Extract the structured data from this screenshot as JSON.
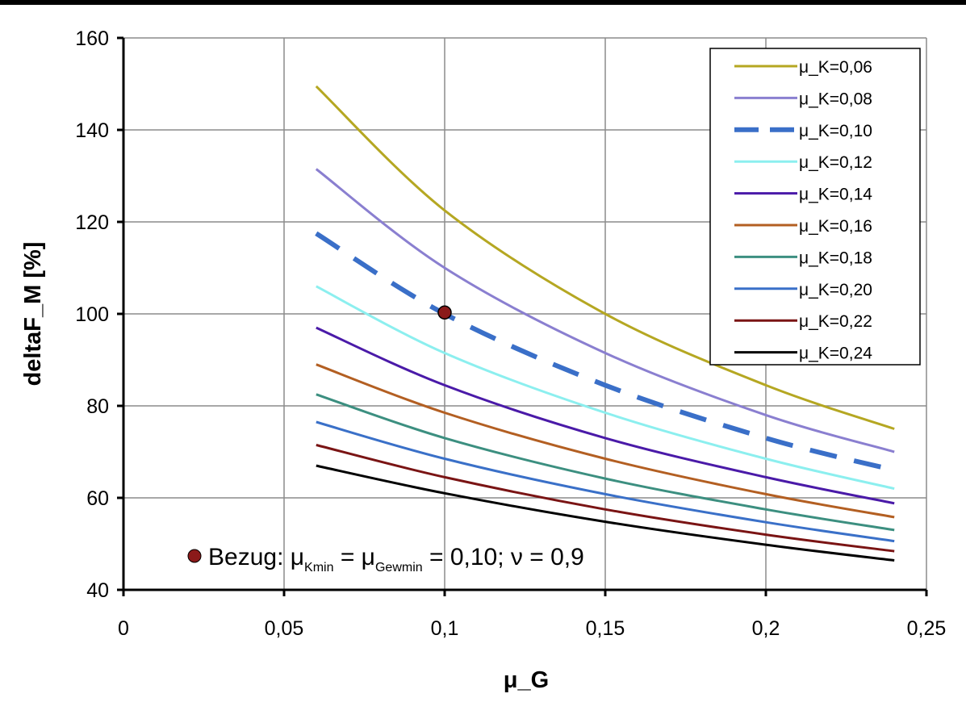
{
  "chart_data": {
    "type": "line",
    "xlabel": "μ_G",
    "ylabel": "deltaF_M [%]",
    "xlim": [
      0,
      0.25
    ],
    "ylim": [
      40,
      160
    ],
    "xticks": [
      0,
      0.05,
      0.1,
      0.15,
      0.2,
      0.25
    ],
    "xtick_labels": [
      "0",
      "0,05",
      "0,1",
      "0,15",
      "0,2",
      "0,25"
    ],
    "yticks": [
      40,
      60,
      80,
      100,
      120,
      140,
      160
    ],
    "ytick_labels": [
      "40",
      "60",
      "80",
      "100",
      "120",
      "140",
      "160"
    ],
    "grid": true,
    "legend_position": "top-right",
    "x": [
      0.06,
      0.1,
      0.15,
      0.2,
      0.24
    ],
    "series": [
      {
        "name": "μ_K=0,06",
        "color": "#b5a722",
        "dash": false,
        "values": [
          149.5,
          122.5,
          100,
          84.5,
          75
        ]
      },
      {
        "name": "μ_K=0,08",
        "color": "#8a7fd0",
        "dash": false,
        "values": [
          131.5,
          110,
          91.5,
          78,
          70
        ]
      },
      {
        "name": "μ_K=0,10",
        "color": "#3a6fc8",
        "dash": true,
        "values": [
          117.5,
          100,
          84.5,
          73,
          66
        ]
      },
      {
        "name": "μ_K=0,12",
        "color": "#8cefef",
        "dash": false,
        "values": [
          106,
          91.5,
          78.5,
          68.5,
          62
        ]
      },
      {
        "name": "μ_K=0,14",
        "color": "#4a1aa8",
        "dash": false,
        "values": [
          97,
          84.5,
          73,
          64.5,
          58.8
        ]
      },
      {
        "name": "μ_K=0,16",
        "color": "#b35f22",
        "dash": false,
        "values": [
          89,
          78.5,
          68.5,
          60.8,
          55.8
        ]
      },
      {
        "name": "μ_K=0,18",
        "color": "#3c8f80",
        "dash": false,
        "values": [
          82.5,
          73,
          64.2,
          57.5,
          53
        ]
      },
      {
        "name": "μ_K=0,20",
        "color": "#3a70c8",
        "dash": false,
        "values": [
          76.5,
          68.5,
          60.8,
          54.7,
          50.6
        ]
      },
      {
        "name": "μ_K=0,22",
        "color": "#7a1414",
        "dash": false,
        "values": [
          71.5,
          64.5,
          57.5,
          52,
          48.4
        ]
      },
      {
        "name": "μ_K=0,24",
        "color": "#000000",
        "dash": false,
        "values": [
          67,
          61,
          54.8,
          49.8,
          46.4
        ]
      }
    ],
    "reference_point": {
      "x": 0.1,
      "y": 100.3,
      "color": "#8b1a1a"
    },
    "annotation": {
      "marker_color": "#8b1a1a",
      "prefix": "Bezug: μ",
      "sub1": "Kmin",
      "mid": " = μ",
      "sub2": "Gewmin",
      "suffix": " = 0,10; ν = 0,9"
    }
  }
}
